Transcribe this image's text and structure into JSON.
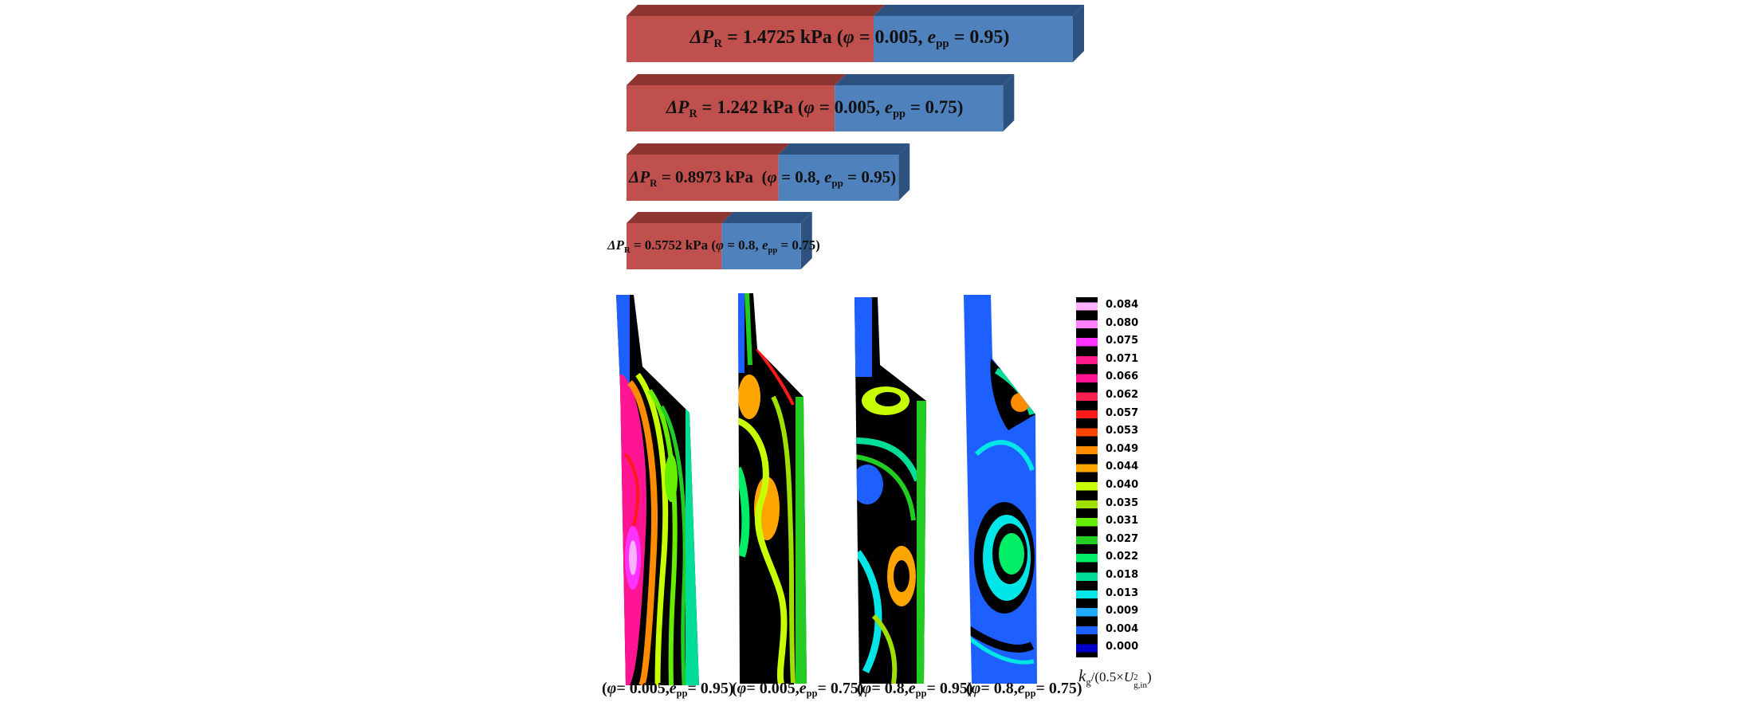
{
  "bars": [
    {
      "delta_label": "ΔP",
      "delta_sub": "R",
      "value_text": " = 1.4725 kPa",
      "params_open": " (",
      "phi": "φ",
      "phi_text": " = 0.005, ",
      "e": "e",
      "e_sub": "pp",
      "e_text": " = 0.95)",
      "pressure_kpa": 1.4725,
      "red_fraction": 0.5
    },
    {
      "delta_label": "ΔP",
      "delta_sub": "R",
      "value_text": " = 1.242 kPa",
      "params_open": " (",
      "phi": "φ",
      "phi_text": " = 0.005, ",
      "e": "e",
      "e_sub": "pp",
      "e_text": " = 0.75)",
      "pressure_kpa": 1.242,
      "red_fraction": 0.5
    },
    {
      "delta_label": "ΔP",
      "delta_sub": "R",
      "value_text": " = 0.8973 kPa",
      "params_open": "  (",
      "phi": "φ",
      "phi_text": " = 0.8, ",
      "e": "e",
      "e_sub": "pp",
      "e_text": " = 0.95)",
      "pressure_kpa": 0.8973,
      "red_fraction": 0.5
    },
    {
      "delta_label": "ΔP",
      "delta_sub": "R",
      "value_text": " = 0.5752 kPa",
      "params_open": " (",
      "phi": "φ",
      "phi_text": " = 0.8, ",
      "e": "e",
      "e_sub": "pp",
      "e_text": " = 0.75)",
      "pressure_kpa": 0.5752,
      "red_fraction": 0.5
    }
  ],
  "captions": [
    {
      "open": "(",
      "phi": "φ",
      "phi_text": " = 0.005, ",
      "e": "e",
      "e_sub": "pp",
      "e_text": " = 0.95)"
    },
    {
      "open": "(",
      "phi": "φ",
      "phi_text": " = 0.005, ",
      "e": "e",
      "e_sub": "pp",
      "e_text": " = 0.75)"
    },
    {
      "open": "(",
      "phi": "φ",
      "phi_text": " = 0.8, ",
      "e": "e",
      "e_sub": "pp",
      "e_text": " = 0.95)"
    },
    {
      "open": "(",
      "phi": "φ",
      "phi_text": " = 0.8, ",
      "e": "e",
      "e_sub": "pp",
      "e_text": " = 0.75)"
    }
  ],
  "legend": {
    "labels": [
      "0.084",
      "0.080",
      "0.075",
      "0.071",
      "0.066",
      "0.062",
      "0.057",
      "0.053",
      "0.049",
      "0.044",
      "0.040",
      "0.035",
      "0.031",
      "0.027",
      "0.022",
      "0.018",
      "0.013",
      "0.009",
      "0.004",
      "0.000"
    ],
    "colors": [
      "#ffb0ff",
      "#ff80ff",
      "#ff33ff",
      "#ff1a8c",
      "#ff1493",
      "#ff2050",
      "#ff1a1a",
      "#ff4500",
      "#ff8c00",
      "#ffa500",
      "#c8ff00",
      "#a0e000",
      "#66ee00",
      "#22cc22",
      "#00ee66",
      "#00dd99",
      "#00e5e5",
      "#22aaff",
      "#1e5fff",
      "#0000cc"
    ]
  },
  "axis_title": {
    "k": "k",
    "k_sub": "g",
    "rest_open": "/(0.5×",
    "u": "U",
    "u_sup": "2",
    "u_sub": "g,in",
    "close": ")"
  },
  "palette": {
    "red": "#c0504d",
    "red_dark": "#8e3532",
    "blue": "#4f81bd",
    "blue_dark": "#2d527f"
  }
}
